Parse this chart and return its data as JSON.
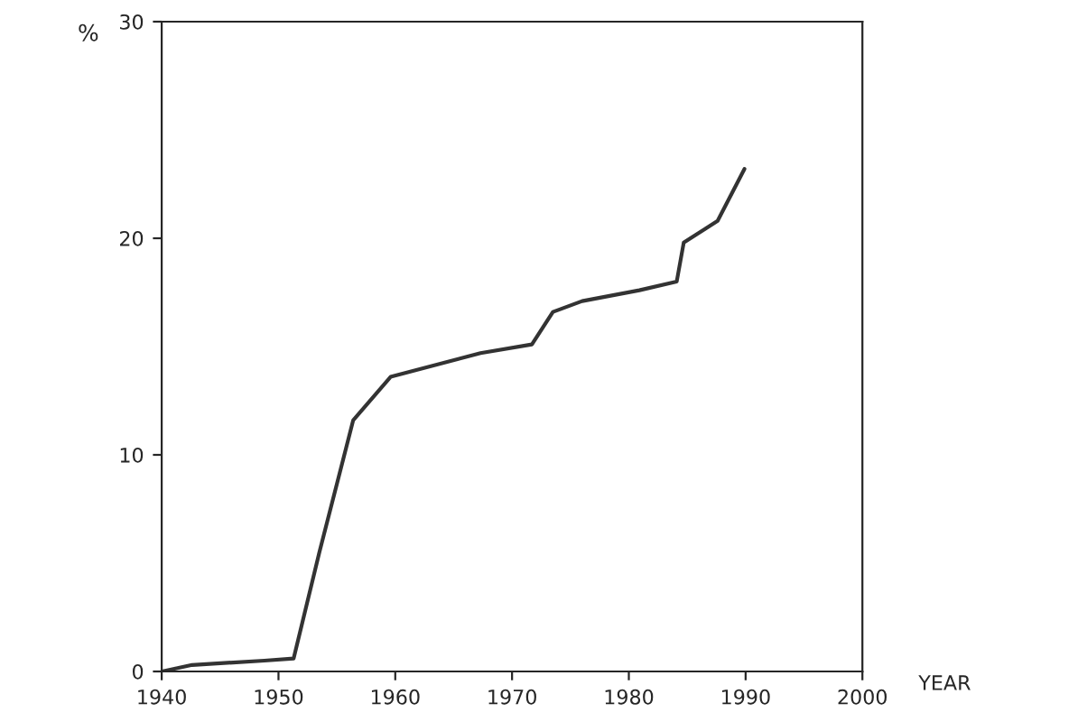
{
  "chart_data": {
    "type": "line",
    "xlabel": "YEAR",
    "ylabel": "%",
    "x": [
      1940,
      1942.6,
      1948.8,
      1951.3,
      1953.5,
      1956.4,
      1959.6,
      1967.3,
      1971.7,
      1973.5,
      1976,
      1980.9,
      1984.1,
      1984.7,
      1987.6,
      1989.9
    ],
    "series": [
      {
        "color": "#333333",
        "values": [
          0,
          0.3,
          0.5,
          0.6,
          5.5,
          11.6,
          13.6,
          14.7,
          15.1,
          16.6,
          17.1,
          17.6,
          18,
          19.8,
          20.8,
          23.2
        ]
      }
    ],
    "xlim": [
      1940,
      2000
    ],
    "xticks": [
      1940,
      1950,
      1960,
      1970,
      1980,
      1990,
      2000
    ],
    "ylim": [
      0,
      30
    ],
    "yticks": [
      0,
      10,
      20,
      30
    ],
    "grid": false,
    "legend": false,
    "marker": "none",
    "line_style": "solid"
  }
}
